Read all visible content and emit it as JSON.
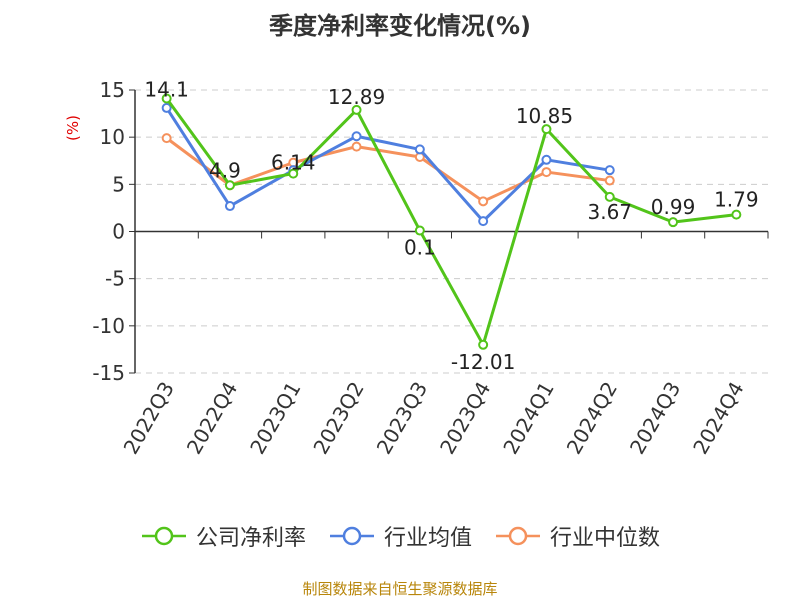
{
  "chart_data": {
    "type": "line",
    "title": "季度净利率变化情况(%)",
    "ylabel": "(%)",
    "xlabel": "",
    "categories": [
      "2022Q3",
      "2022Q4",
      "2023Q1",
      "2023Q2",
      "2023Q3",
      "2023Q4",
      "2024Q1",
      "2024Q2",
      "2024Q3",
      "2024Q4"
    ],
    "ylim": [
      -15,
      15
    ],
    "yticks": [
      15,
      10,
      5,
      0,
      -5,
      -10,
      -15
    ],
    "grid": true,
    "legend_position": "bottom",
    "series": [
      {
        "name": "公司净利率",
        "color": "#52c41a",
        "values": [
          14.1,
          4.9,
          6.14,
          12.89,
          0.1,
          -12.01,
          10.85,
          3.67,
          0.99,
          1.79
        ],
        "labels": [
          "14.1",
          "4.9",
          "6.14",
          "12.89",
          "0.1",
          "-12.01",
          "10.85",
          "3.67",
          "0.99",
          "1.79"
        ]
      },
      {
        "name": "行业均值",
        "color": "#4f7fdf",
        "values": [
          13.1,
          2.7,
          6.5,
          10.1,
          8.7,
          1.1,
          7.6,
          6.5,
          null,
          null
        ]
      },
      {
        "name": "行业中位数",
        "color": "#f5915c",
        "values": [
          9.9,
          4.9,
          7.3,
          9.0,
          7.9,
          3.2,
          6.3,
          5.4,
          null,
          null
        ]
      }
    ]
  },
  "footer": "制图数据来自恒生聚源数据库"
}
